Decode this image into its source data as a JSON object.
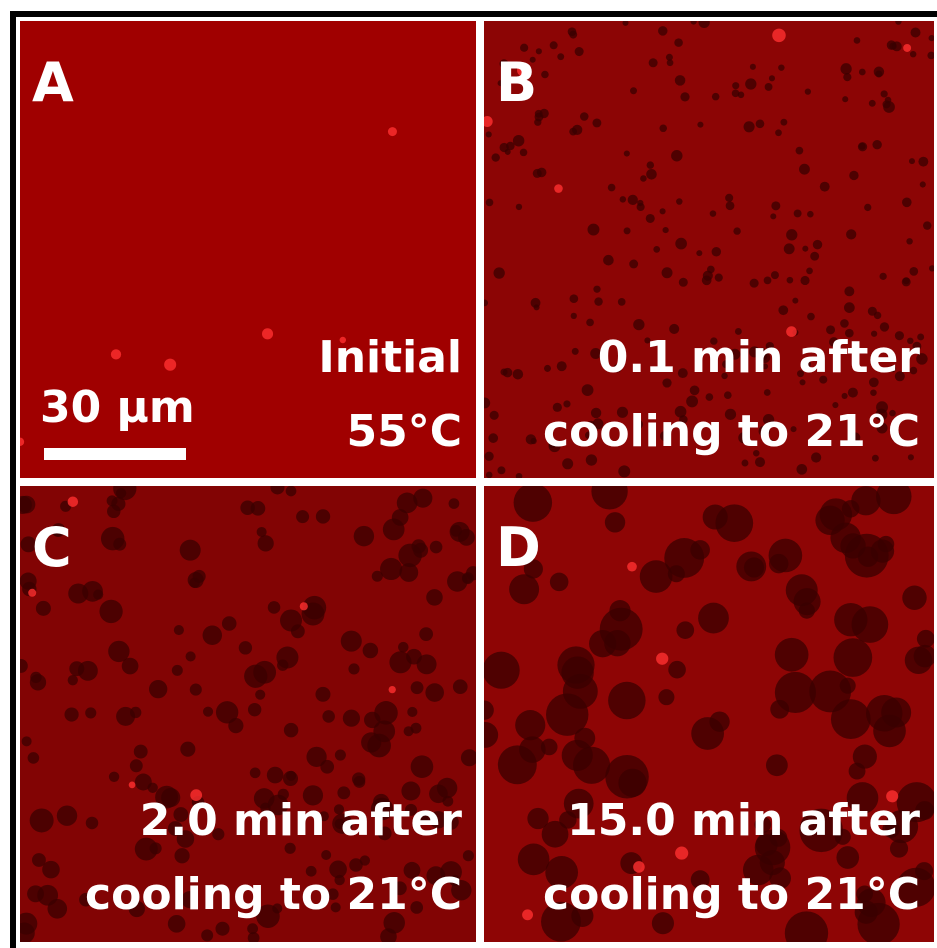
{
  "panels": [
    {
      "label": "A",
      "caption": [
        "Initial",
        "55°C"
      ]
    },
    {
      "label": "B",
      "caption": [
        "0.1 min after",
        "cooling to 21°C"
      ]
    },
    {
      "label": "C",
      "caption": [
        "2.0 min after",
        "cooling to 21°C"
      ]
    },
    {
      "label": "D",
      "caption": [
        "15.0 min after",
        "cooling to 21°C"
      ]
    }
  ],
  "scale_bar": {
    "label": "30 μm"
  }
}
